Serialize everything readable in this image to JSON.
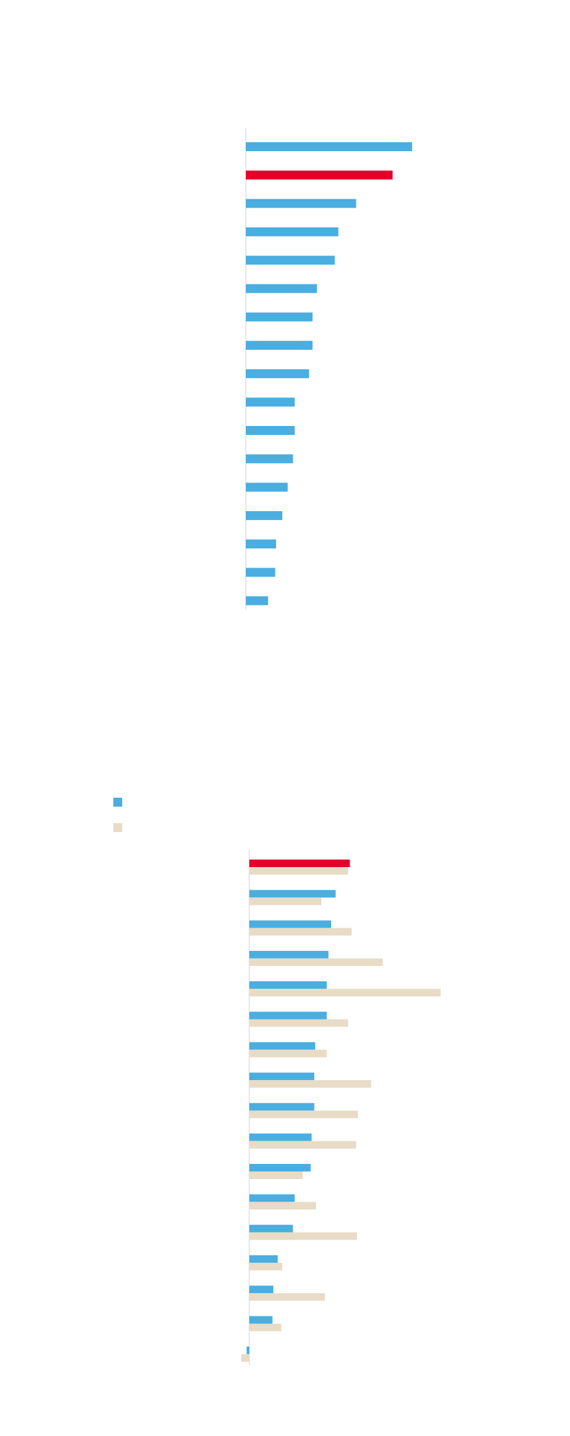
{
  "chart_data": [
    {
      "type": "barh",
      "series": [
        {
          "values": [
            187,
            165,
            124,
            104,
            100,
            80,
            75,
            75,
            71,
            55,
            55,
            53,
            47,
            41,
            34,
            33,
            25
          ],
          "colors": [
            "#4aaee0",
            "#e4002b",
            "#4aaee0",
            "#4aaee0",
            "#4aaee0",
            "#4aaee0",
            "#4aaee0",
            "#4aaee0",
            "#4aaee0",
            "#4aaee0",
            "#4aaee0",
            "#4aaee0",
            "#4aaee0",
            "#4aaee0",
            "#4aaee0",
            "#4aaee0",
            "#4aaee0"
          ]
        }
      ],
      "xlim": [
        0,
        200
      ]
    },
    {
      "type": "barh-grouped",
      "series": [
        {
          "color": "#4aaee0",
          "values": [
            113,
            97,
            92,
            89,
            87,
            87,
            74,
            73,
            73,
            70,
            69,
            51,
            49,
            32,
            27,
            26,
            -3
          ],
          "colors": [
            "#e4002b",
            "#4aaee0",
            "#4aaee0",
            "#4aaee0",
            "#4aaee0",
            "#4aaee0",
            "#4aaee0",
            "#4aaee0",
            "#4aaee0",
            "#4aaee0",
            "#4aaee0",
            "#4aaee0",
            "#4aaee0",
            "#4aaee0",
            "#4aaee0",
            "#4aaee0",
            "#4aaee0"
          ]
        },
        {
          "color": "#e8dcc6",
          "values": [
            111,
            81,
            115,
            150,
            215,
            111,
            87,
            137,
            122,
            120,
            60,
            75,
            121,
            37,
            85,
            36,
            -9
          ]
        }
      ],
      "xlim": [
        -20,
        240
      ],
      "legend": "top-left"
    }
  ]
}
